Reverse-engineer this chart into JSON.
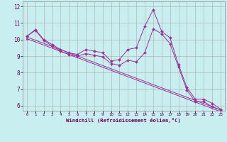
{
  "xlabel": "Windchill (Refroidissement éolien,°C)",
  "background_color": "#c8eef0",
  "line_color": "#993399",
  "xlim": [
    -0.5,
    23.5
  ],
  "ylim": [
    5.7,
    12.3
  ],
  "yticks": [
    6,
    7,
    8,
    9,
    10,
    11,
    12
  ],
  "xticks": [
    0,
    1,
    2,
    3,
    4,
    5,
    6,
    7,
    8,
    9,
    10,
    11,
    12,
    13,
    14,
    15,
    16,
    17,
    18,
    19,
    20,
    21,
    22,
    23
  ],
  "line1_x": [
    0,
    1,
    2,
    3,
    4,
    5,
    6,
    7,
    8,
    9,
    10,
    11,
    12,
    13,
    14,
    15,
    16,
    17,
    18,
    19,
    20,
    21,
    22,
    23
  ],
  "line1_y": [
    10.2,
    10.6,
    10.0,
    9.7,
    9.4,
    9.2,
    9.1,
    9.4,
    9.3,
    9.2,
    8.7,
    8.8,
    9.4,
    9.5,
    10.8,
    11.8,
    10.5,
    10.1,
    8.5,
    7.1,
    6.4,
    6.4,
    6.15,
    5.8
  ],
  "line2_x": [
    0,
    1,
    2,
    3,
    4,
    5,
    6,
    7,
    8,
    9,
    10,
    11,
    12,
    13,
    14,
    15,
    16,
    17,
    18,
    19,
    20,
    21,
    22,
    23
  ],
  "line2_y": [
    10.2,
    10.55,
    9.95,
    9.6,
    9.3,
    9.1,
    9.0,
    9.15,
    9.05,
    8.95,
    8.55,
    8.45,
    8.75,
    8.65,
    9.2,
    10.65,
    10.35,
    9.75,
    8.35,
    6.95,
    6.25,
    6.25,
    5.95,
    5.75
  ],
  "line3_x": [
    0,
    23
  ],
  "line3_y": [
    10.15,
    5.75
  ],
  "line4_x": [
    0,
    23
  ],
  "line4_y": [
    10.05,
    5.65
  ]
}
